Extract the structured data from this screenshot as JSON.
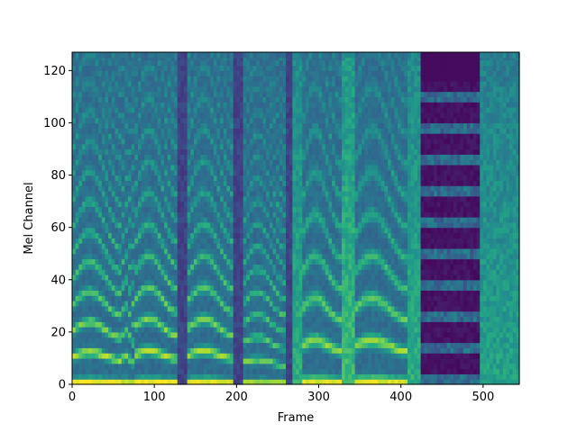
{
  "chart_data": {
    "type": "heatmap",
    "title": "",
    "xlabel": "Frame",
    "ylabel": "Mel Channel",
    "xlim": [
      0,
      544
    ],
    "ylim": [
      0,
      127
    ],
    "x_ticks": [
      0,
      100,
      200,
      300,
      400,
      500
    ],
    "y_ticks": [
      0,
      20,
      40,
      60,
      80,
      100,
      120
    ],
    "colormap": "viridis",
    "grid": false,
    "legend": "none",
    "segments": [
      {
        "start": 0,
        "end": 58,
        "kind": "voiced",
        "f0": 10,
        "intensity": 0.95
      },
      {
        "start": 58,
        "end": 74,
        "kind": "voiced",
        "f0": 8.5,
        "intensity": 0.85
      },
      {
        "start": 74,
        "end": 126,
        "kind": "voiced",
        "f0": 10.5,
        "intensity": 0.95
      },
      {
        "start": 126,
        "end": 140,
        "kind": "silence",
        "intensity": 0.15
      },
      {
        "start": 140,
        "end": 195,
        "kind": "voiced",
        "f0": 10.5,
        "intensity": 0.9
      },
      {
        "start": 195,
        "end": 206,
        "kind": "silence",
        "intensity": 0.15
      },
      {
        "start": 206,
        "end": 258,
        "kind": "voiced",
        "f0": 7.5,
        "intensity": 0.75
      },
      {
        "start": 258,
        "end": 266,
        "kind": "silence",
        "intensity": 0.15
      },
      {
        "start": 266,
        "end": 278,
        "kind": "noise",
        "intensity": 0.4
      },
      {
        "start": 278,
        "end": 325,
        "kind": "voiced",
        "f0": 14,
        "intensity": 0.9
      },
      {
        "start": 325,
        "end": 342,
        "kind": "noise",
        "intensity": 0.45
      },
      {
        "start": 342,
        "end": 405,
        "kind": "voiced",
        "f0": 14,
        "intensity": 0.9
      },
      {
        "start": 405,
        "end": 422,
        "kind": "noise",
        "intensity": 0.4
      },
      {
        "start": 422,
        "end": 493,
        "kind": "banded",
        "intensity": 0.25
      },
      {
        "start": 493,
        "end": 544,
        "kind": "noise",
        "intensity": 0.35
      }
    ]
  }
}
